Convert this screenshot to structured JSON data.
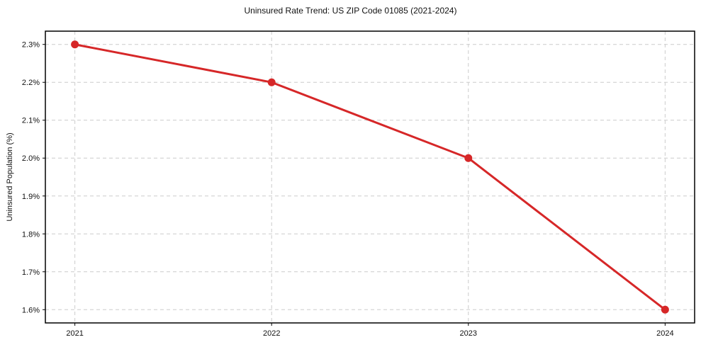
{
  "chart_data": {
    "type": "line",
    "title": "Uninsured Rate Trend: US ZIP Code 01085 (2021-2024)",
    "xlabel": "",
    "ylabel": "Uninsured Population (%)",
    "x": [
      2021,
      2022,
      2023,
      2024
    ],
    "x_tick_labels": [
      "2021",
      "2022",
      "2023",
      "2024"
    ],
    "series": [
      {
        "name": "Uninsured Population (%)",
        "values": [
          2.3,
          2.2,
          2.0,
          1.6
        ]
      }
    ],
    "y_ticks": [
      1.6,
      1.7,
      1.8,
      1.9,
      2.0,
      2.1,
      2.2,
      2.3
    ],
    "y_tick_labels": [
      "1.6%",
      "1.7%",
      "1.8%",
      "1.9%",
      "2.0%",
      "2.1%",
      "2.2%",
      "2.3%"
    ],
    "xlim": [
      2020.85,
      2024.15
    ],
    "ylim": [
      1.565,
      2.335
    ],
    "grid": true,
    "legend": "none",
    "line_color": "#d62728",
    "marker": "circle",
    "marker_color": "#d62728",
    "grid_color": "#cccccc",
    "axis_border_color": "#000000",
    "tick_color": "#000000"
  }
}
